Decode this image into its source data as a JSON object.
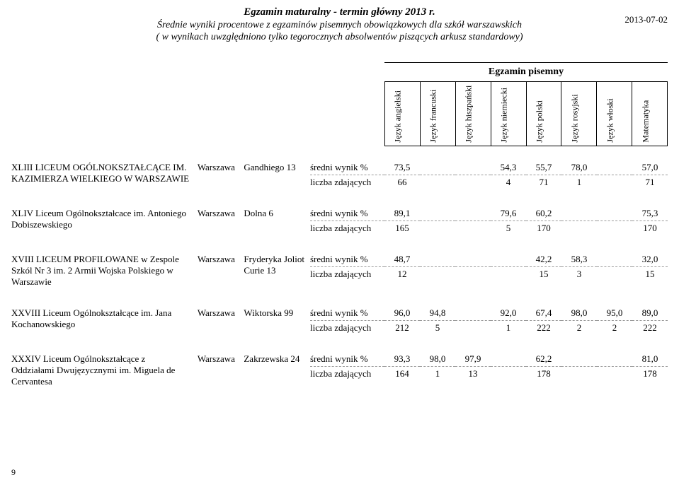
{
  "header": {
    "title": "Egzamin maturalny - termin główny 2013 r.",
    "line2": "Średnie wyniki procentowe z egzaminów pisemnych obowiązkowych dla szkół warszawskich",
    "line3": "( w wynikach uwzględniono tylko tegorocznych absolwentów piszących arkusz standardowy)",
    "date": "2013-07-02"
  },
  "exam_header": {
    "title": "Egzamin pisemny",
    "subjects": [
      "Język angielski",
      "Język francuski",
      "Język hiszpański",
      "Język niemiecki",
      "Język polski",
      "Język rosyjski",
      "Język włoski",
      "Matematyka"
    ]
  },
  "labels": {
    "avg": "średni wynik %",
    "count": "liczba zdających"
  },
  "schools": [
    {
      "name": "XLIII LICEUM OGÓLNOKSZTAŁCĄCE IM. KAZIMIERZA WIELKIEGO W WARSZAWIE",
      "city": "Warszawa",
      "street": "Gandhiego 13",
      "avg": [
        "73,5",
        "",
        "",
        "54,3",
        "55,7",
        "78,0",
        "",
        "57,0"
      ],
      "count": [
        "66",
        "",
        "",
        "4",
        "71",
        "1",
        "",
        "71"
      ]
    },
    {
      "name": "XLIV Liceum Ogólnokształcace im. Antoniego Dobiszewskiego",
      "city": "Warszawa",
      "street": "Dolna 6",
      "avg": [
        "89,1",
        "",
        "",
        "79,6",
        "60,2",
        "",
        "",
        "75,3"
      ],
      "count": [
        "165",
        "",
        "",
        "5",
        "170",
        "",
        "",
        "170"
      ]
    },
    {
      "name": "XVIII LICEUM PROFILOWANE w Zespole Szkól Nr 3 im. 2 Armii Wojska Polskiego w Warszawie",
      "city": "Warszawa",
      "street": "Fryderyka Joliot Curie 13",
      "avg": [
        "48,7",
        "",
        "",
        "",
        "42,2",
        "58,3",
        "",
        "32,0"
      ],
      "count": [
        "12",
        "",
        "",
        "",
        "15",
        "3",
        "",
        "15"
      ]
    },
    {
      "name": "XXVIII Liceum Ogólnokształcące im. Jana Kochanowskiego",
      "city": "Warszawa",
      "street": "Wiktorska 99",
      "avg": [
        "96,0",
        "94,8",
        "",
        "92,0",
        "67,4",
        "98,0",
        "95,0",
        "89,0"
      ],
      "count": [
        "212",
        "5",
        "",
        "1",
        "222",
        "2",
        "2",
        "222"
      ]
    },
    {
      "name": "XXXIV Liceum Ogólnokształcące z Oddziałami Dwujęzycznymi im. Miguela de Cervantesa",
      "city": "Warszawa",
      "street": "Zakrzewska 24",
      "avg": [
        "93,3",
        "98,0",
        "97,9",
        "",
        "62,2",
        "",
        "",
        "81,0"
      ],
      "count": [
        "164",
        "1",
        "13",
        "",
        "178",
        "",
        "",
        "178"
      ]
    }
  ],
  "page_number": "9"
}
